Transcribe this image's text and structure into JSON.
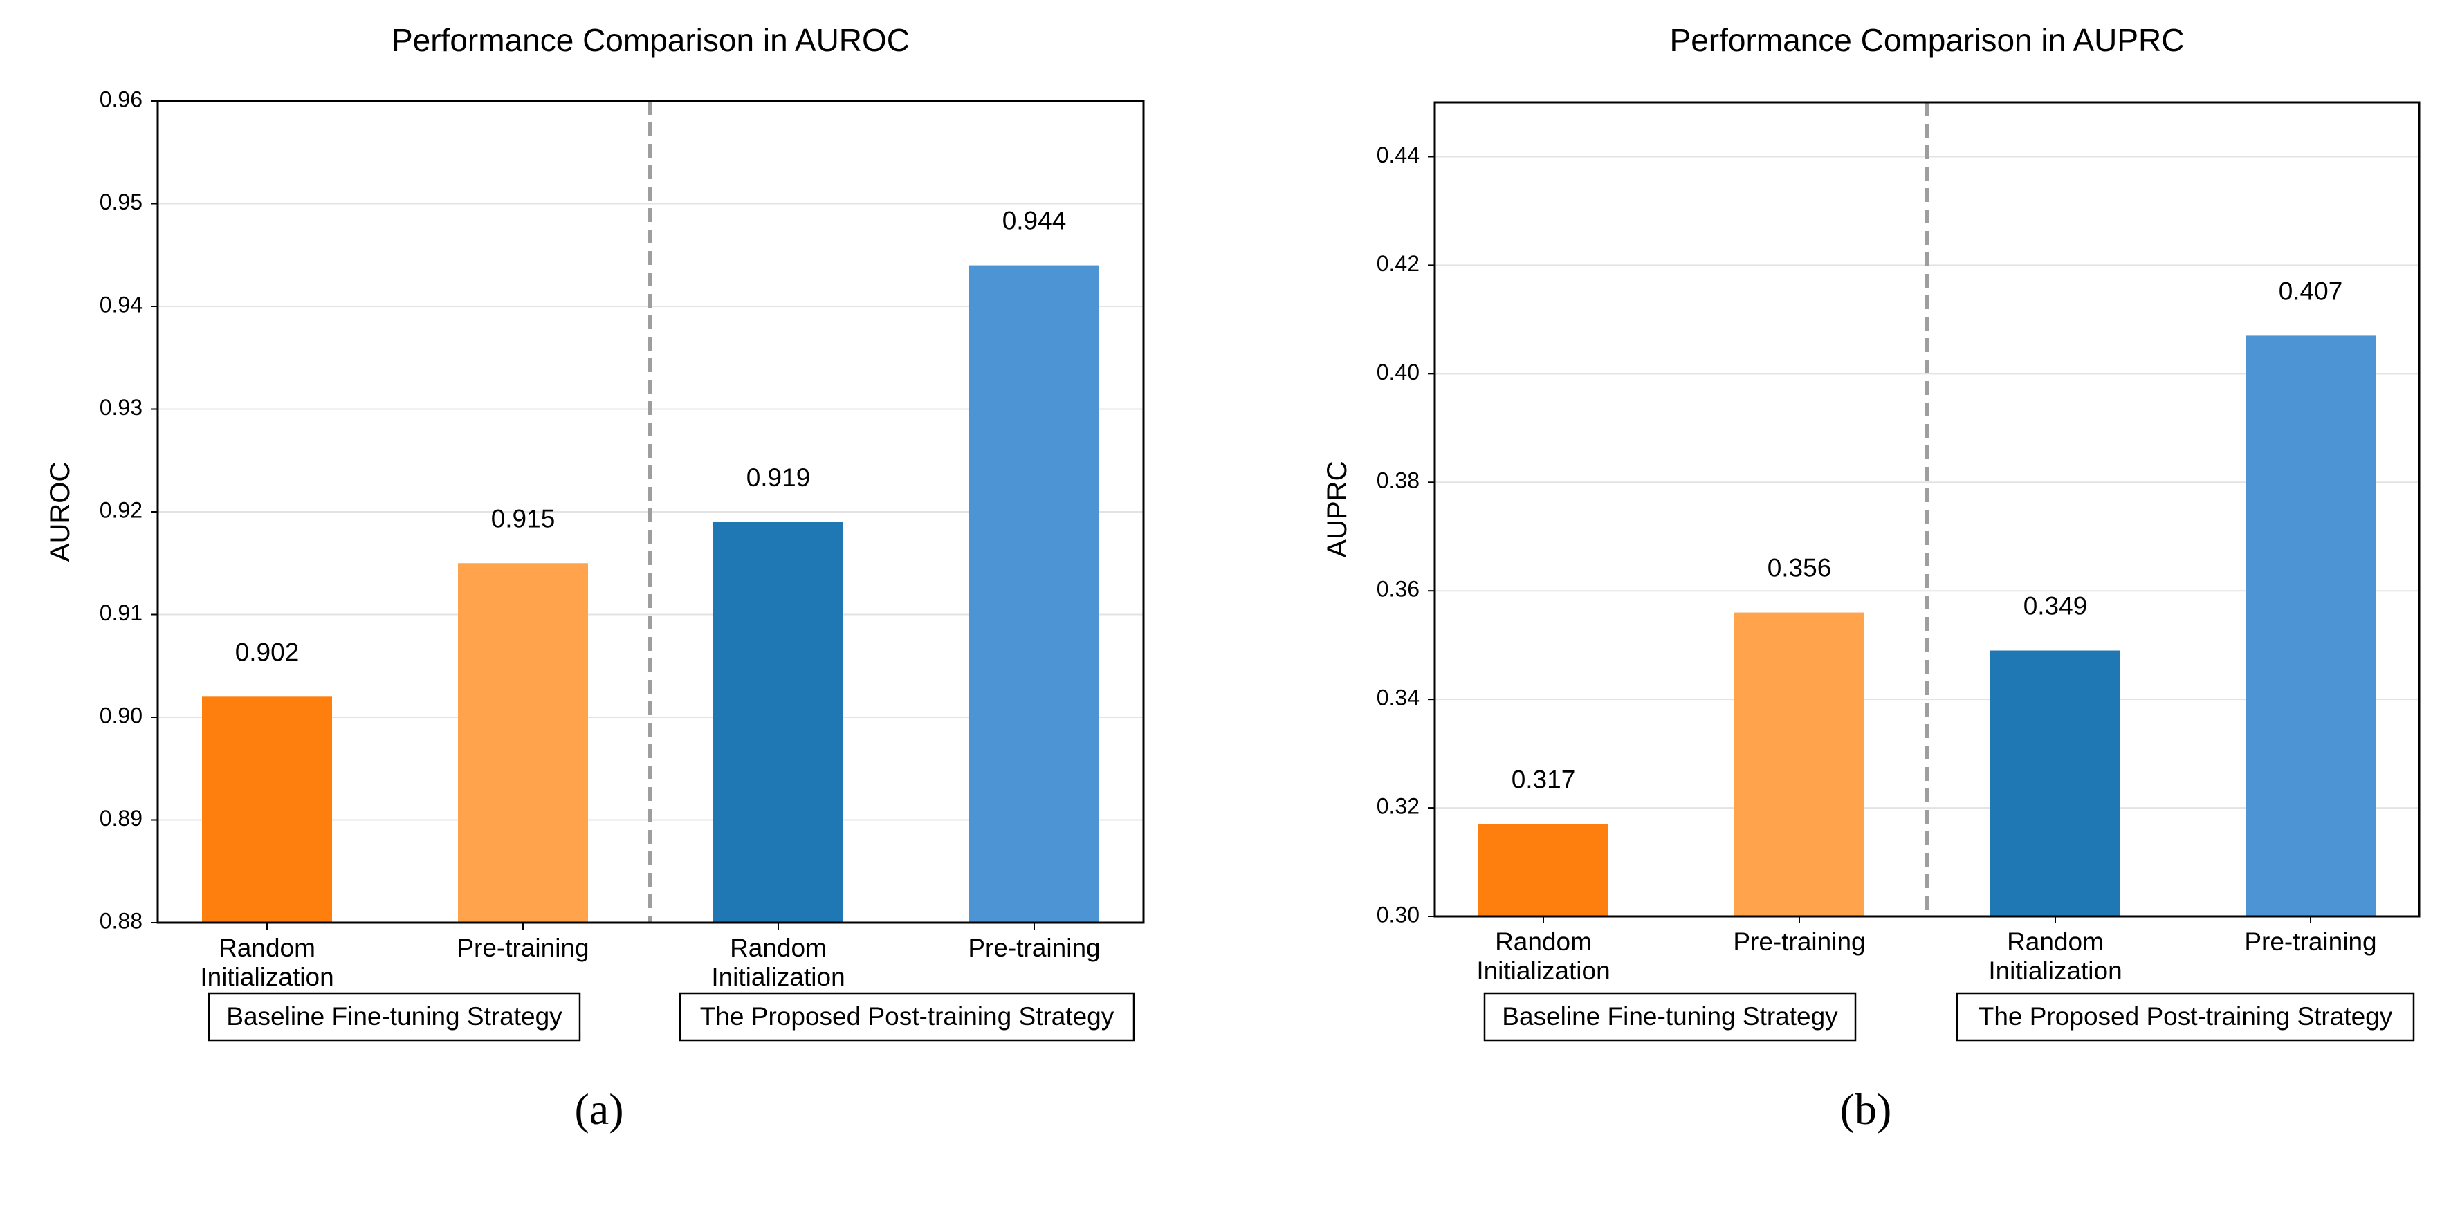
{
  "chart_data": [
    {
      "type": "bar",
      "title": "Performance Comparison in AUROC",
      "xlabel": "",
      "ylabel": "AUROC",
      "ylim": [
        0.88,
        0.96
      ],
      "yticks": [
        0.88,
        0.89,
        0.9,
        0.91,
        0.92,
        0.93,
        0.94,
        0.95,
        0.96
      ],
      "ytick_labels": [
        "0.88",
        "0.89",
        "0.90",
        "0.91",
        "0.92",
        "0.93",
        "0.94",
        "0.95",
        "0.96"
      ],
      "grid": "horizontal",
      "categories": [
        "Random\nInitialization",
        "Pre-training",
        "Random\nInitialization",
        "Pre-training"
      ],
      "values": [
        0.902,
        0.915,
        0.919,
        0.944
      ],
      "value_labels": [
        "0.902",
        "0.915",
        "0.919",
        "0.944"
      ],
      "colors": [
        "#ff7f0e",
        "#ffa34d",
        "#1f77b4",
        "#4c94d4"
      ],
      "groups": [
        {
          "label": "Baseline Fine-tuning Strategy",
          "members": [
            0,
            1
          ]
        },
        {
          "label": "The Proposed Post-training Strategy",
          "members": [
            2,
            3
          ]
        }
      ],
      "divider": "dashed line between groups",
      "caption": "(a)"
    },
    {
      "type": "bar",
      "title": "Performance Comparison in AUPRC",
      "xlabel": "",
      "ylabel": "AUPRC",
      "ylim": [
        0.3,
        0.45
      ],
      "yticks": [
        0.3,
        0.32,
        0.34,
        0.36,
        0.38,
        0.4,
        0.42,
        0.44
      ],
      "ytick_labels": [
        "0.30",
        "0.32",
        "0.34",
        "0.36",
        "0.38",
        "0.40",
        "0.42",
        "0.44"
      ],
      "grid": "horizontal",
      "categories": [
        "Random\nInitialization",
        "Pre-training",
        "Random\nInitialization",
        "Pre-training"
      ],
      "values": [
        0.317,
        0.356,
        0.349,
        0.407
      ],
      "value_labels": [
        "0.317",
        "0.356",
        "0.349",
        "0.407"
      ],
      "colors": [
        "#ff7f0e",
        "#ffa34d",
        "#1f77b4",
        "#4c94d4"
      ],
      "groups": [
        {
          "label": "Baseline Fine-tuning Strategy",
          "members": [
            0,
            1
          ]
        },
        {
          "label": "The Proposed Post-training Strategy",
          "members": [
            2,
            3
          ]
        }
      ],
      "divider": "dashed line between groups",
      "caption": "(b)"
    }
  ]
}
